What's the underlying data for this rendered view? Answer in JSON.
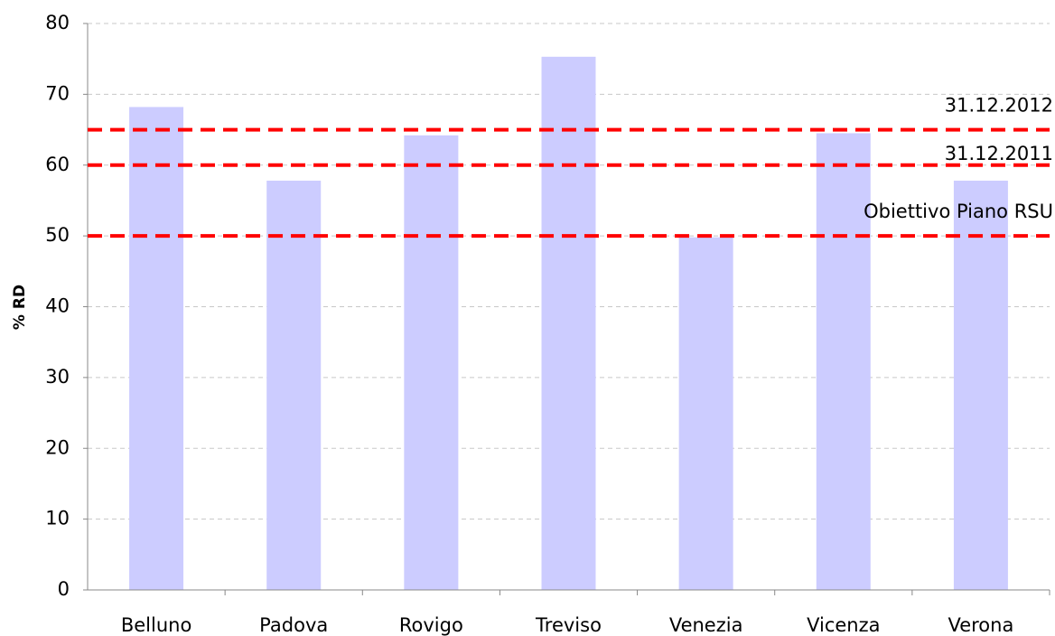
{
  "chart_data": {
    "type": "bar",
    "y_label": "% RD",
    "categories": [
      "Belluno",
      "Padova",
      "Rovigo",
      "Treviso",
      "Venezia",
      "Vicenza",
      "Verona"
    ],
    "values": [
      68.2,
      57.8,
      64.2,
      75.3,
      49.8,
      64.5,
      57.8
    ],
    "color": "#ccccff",
    "ylim": [
      0,
      80
    ],
    "yticks": [
      0,
      10,
      20,
      30,
      40,
      50,
      60,
      70,
      80
    ],
    "grid": true,
    "reference_lines": [
      {
        "label": "31.12.2012",
        "value": 65
      },
      {
        "label": "31.12.2011",
        "value": 60
      },
      {
        "label": "Obiettivo Piano RSU",
        "value": 50
      }
    ],
    "reference_color": "#ff0000"
  }
}
